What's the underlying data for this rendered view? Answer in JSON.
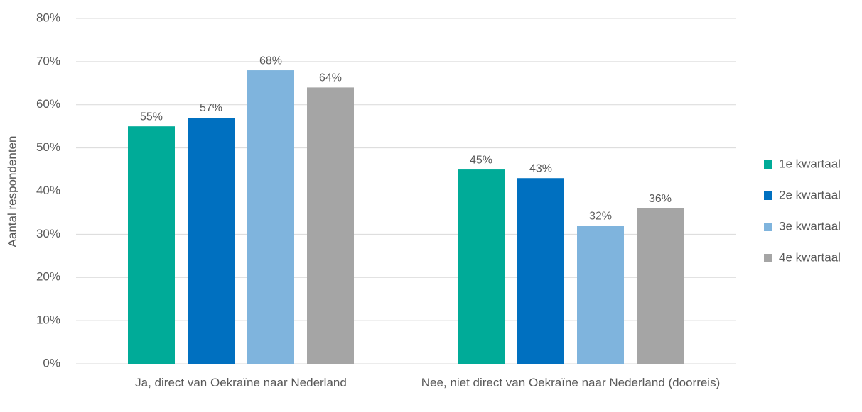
{
  "chart_data": {
    "type": "bar",
    "y_label": "Aantal respondenten",
    "categories": [
      "Ja, direct van Oekraïne naar Nederland",
      "Nee, niet direct van Oekraïne naar Nederland (doorreis)"
    ],
    "series": [
      {
        "name": "1e kwartaal",
        "color": "#00ab98",
        "values": [
          55,
          45
        ],
        "value_labels": [
          "55%",
          "45%"
        ]
      },
      {
        "name": "2e kwartaal",
        "color": "#0070c0",
        "values": [
          57,
          43
        ],
        "value_labels": [
          "57%",
          "43%"
        ]
      },
      {
        "name": "3e kwartaal",
        "color": "#7fb4dd",
        "values": [
          68,
          32
        ],
        "value_labels": [
          "68%",
          "32%"
        ]
      },
      {
        "name": "4e kwartaal",
        "color": "#a5a5a5",
        "values": [
          64,
          36
        ],
        "value_labels": [
          "64%",
          "36%"
        ]
      }
    ],
    "ylim": [
      0,
      80
    ],
    "yticks": [
      {
        "value": 0,
        "label": "0%"
      },
      {
        "value": 10,
        "label": "10%"
      },
      {
        "value": 20,
        "label": "20%"
      },
      {
        "value": 30,
        "label": "30%"
      },
      {
        "value": 40,
        "label": "40%"
      },
      {
        "value": 50,
        "label": "50%"
      },
      {
        "value": 60,
        "label": "60%"
      },
      {
        "value": 70,
        "label": "70%"
      },
      {
        "value": 80,
        "label": "80%"
      }
    ],
    "grid": true,
    "legend": "right"
  }
}
